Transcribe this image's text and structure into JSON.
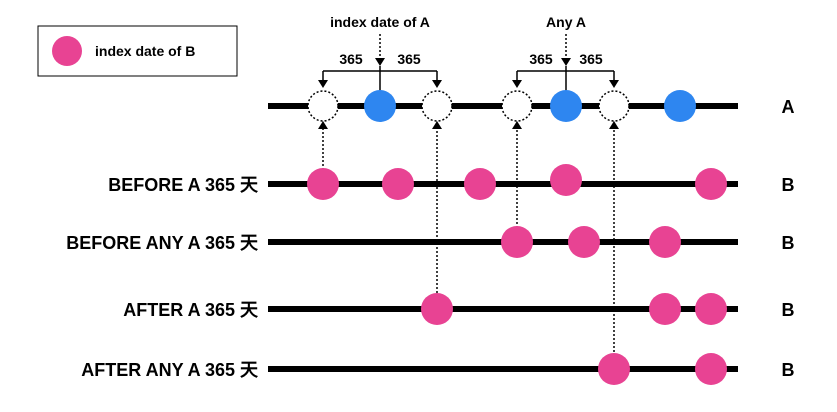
{
  "legend": {
    "label": "index date of  B",
    "color": "#E84393"
  },
  "colors": {
    "pink": "#E84393",
    "blue": "#2E86F0",
    "line": "#000000"
  },
  "annotations": {
    "index_title": "index date of A",
    "any_title": "Any A",
    "interval_left": "365",
    "interval_right": "365"
  },
  "rows": [
    {
      "label": "",
      "tag": "A"
    },
    {
      "label": "BEFORE A 365 天",
      "tag": "B"
    },
    {
      "label": "BEFORE ANY A 365 天",
      "tag": "B"
    },
    {
      "label": "AFTER A 365 天",
      "tag": "B"
    },
    {
      "label": "AFTER ANY A 365 天",
      "tag": "B"
    }
  ]
}
